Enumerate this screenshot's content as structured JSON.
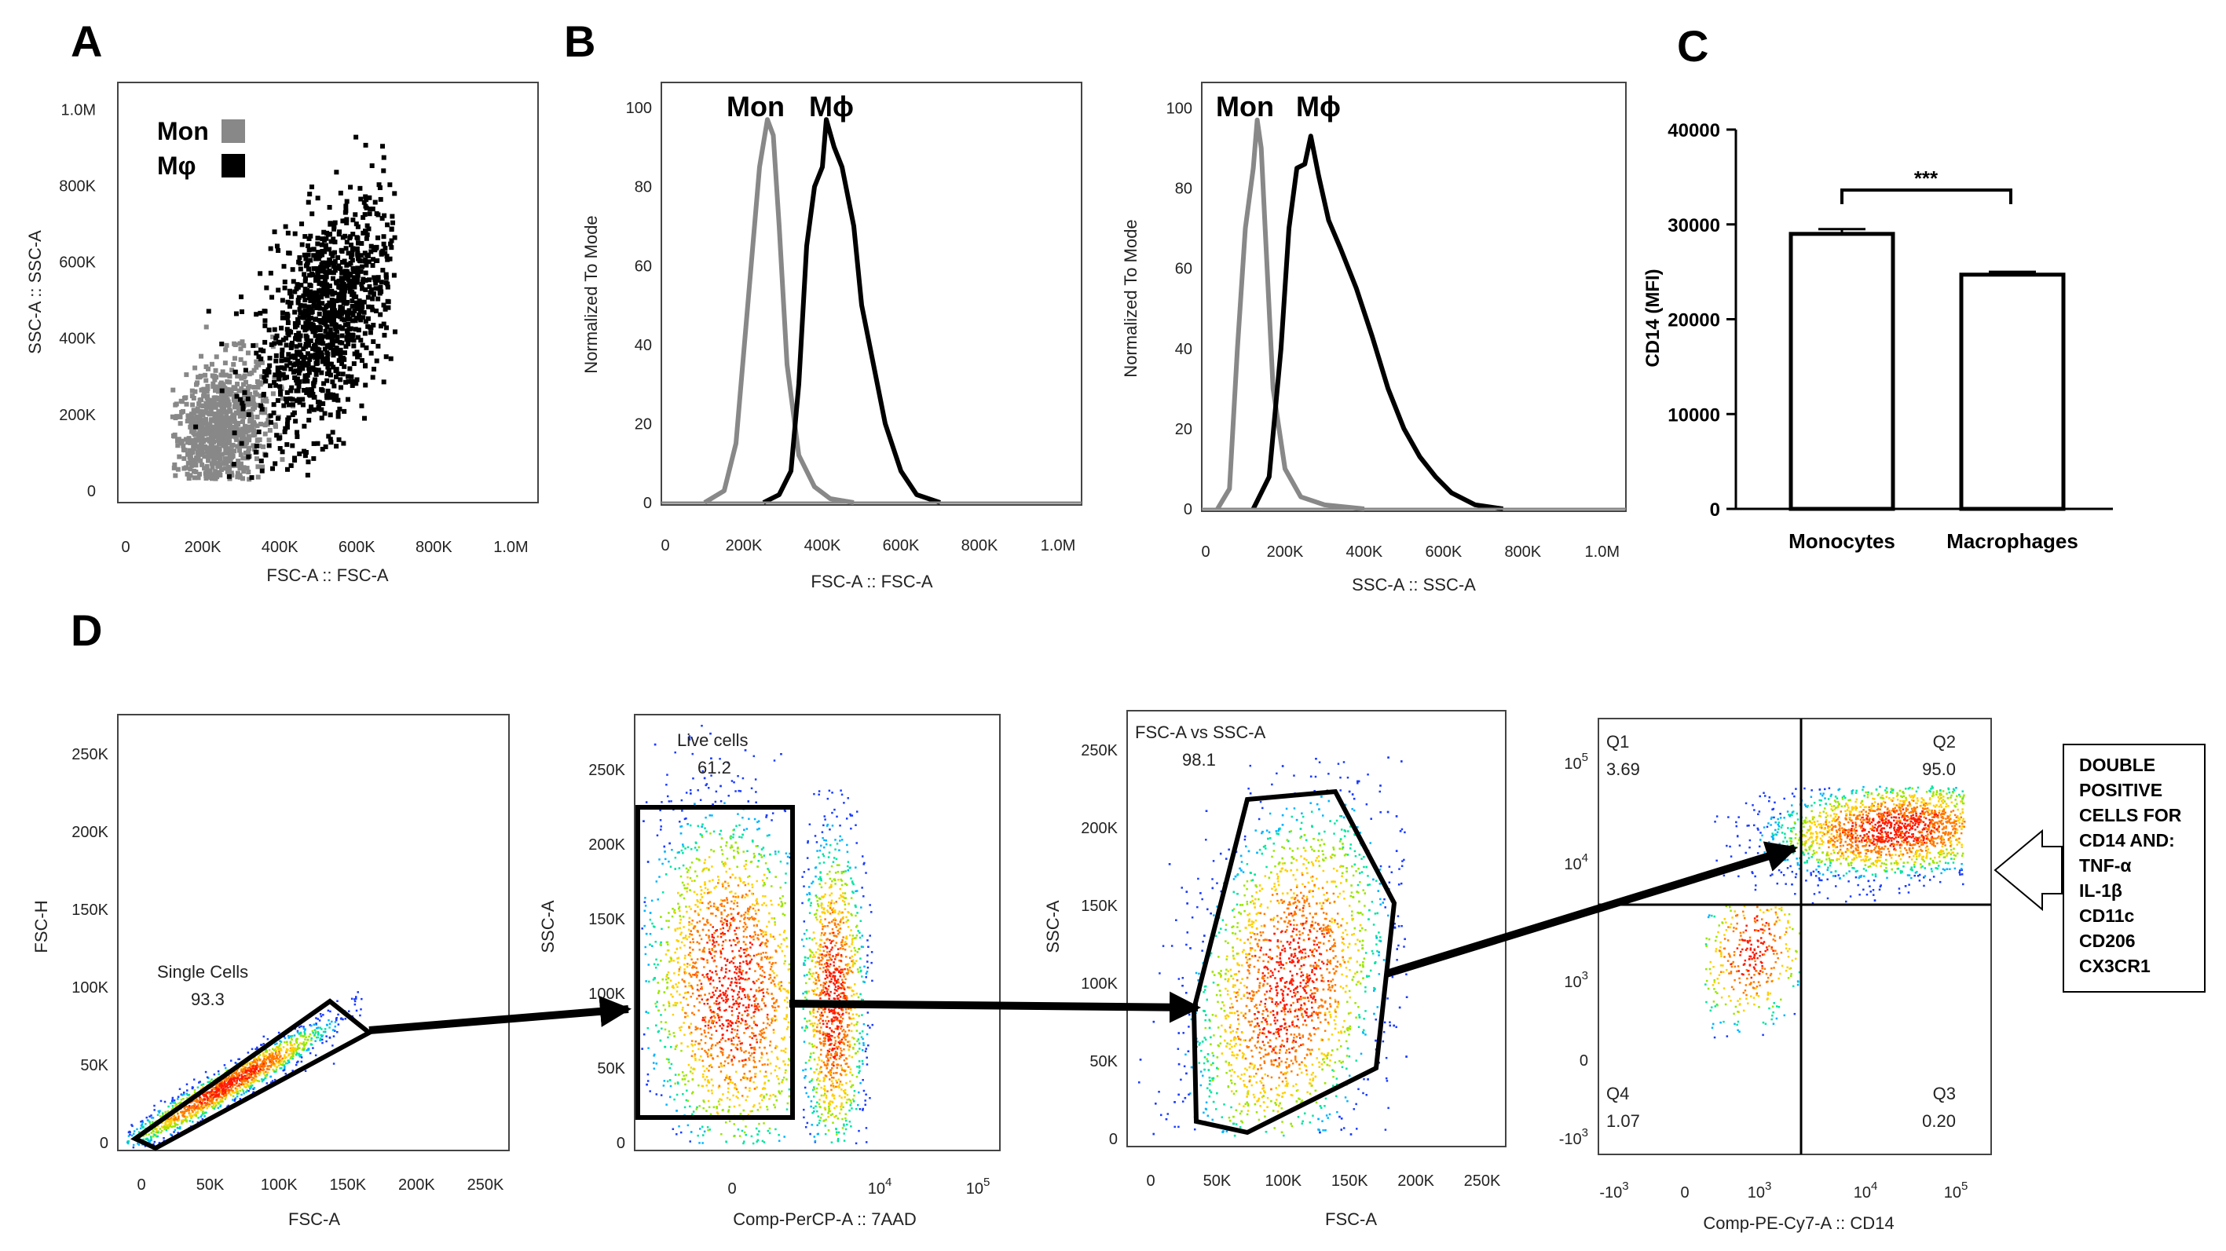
{
  "panels": {
    "A": "A",
    "B": "B",
    "C": "C",
    "D": "D"
  },
  "legend": {
    "mon": "Mon",
    "mac": "Mφ",
    "mac_hist": "Mϕ",
    "mon_color": "#888888",
    "mac_color": "#000000"
  },
  "chart_data": [
    {
      "id": "A",
      "type": "scatter",
      "xlabel": "FSC-A :: FSC-A",
      "ylabel": "SSC-A :: SSC-A",
      "xticks": [
        "0",
        "200K",
        "400K",
        "600K",
        "800K",
        "1.0M"
      ],
      "yticks": [
        "0",
        "200K",
        "400K",
        "600K",
        "800K",
        "1.0M"
      ],
      "xlim": [
        0,
        1050000
      ],
      "ylim": [
        0,
        1050000
      ],
      "series": [
        {
          "name": "Mon",
          "color": "#888888",
          "center": [
            240000,
            150000
          ],
          "spread": [
            70000,
            90000
          ]
        },
        {
          "name": "Mφ",
          "color": "#000000",
          "center": [
            520000,
            450000
          ],
          "spread": [
            90000,
            140000
          ]
        }
      ]
    },
    {
      "id": "B1",
      "type": "line",
      "xlabel": "FSC-A :: FSC-A",
      "ylabel": "Normalized To Mode",
      "xticks": [
        "0",
        "200K",
        "400K",
        "600K",
        "800K",
        "1.0M"
      ],
      "yticks": [
        "0",
        "20",
        "40",
        "60",
        "80",
        "100"
      ],
      "xlim": [
        0,
        1050000
      ],
      "ylim": [
        0,
        105
      ],
      "series": [
        {
          "name": "Mon",
          "color": "#888888",
          "x": [
            100000,
            150000,
            180000,
            210000,
            240000,
            260000,
            275000,
            290000,
            310000,
            340000,
            380000,
            420000,
            480000
          ],
          "y": [
            0,
            3,
            15,
            50,
            85,
            97,
            93,
            70,
            35,
            12,
            4,
            1,
            0
          ]
        },
        {
          "name": "Mϕ",
          "color": "#000000",
          "x": [
            250000,
            290000,
            320000,
            340000,
            360000,
            380000,
            400000,
            410000,
            430000,
            450000,
            480000,
            500000,
            530000,
            560000,
            600000,
            640000,
            700000
          ],
          "y": [
            0,
            2,
            8,
            30,
            65,
            80,
            85,
            97,
            90,
            85,
            70,
            50,
            35,
            20,
            8,
            2,
            0
          ]
        }
      ]
    },
    {
      "id": "B2",
      "type": "line",
      "xlabel": "SSC-A :: SSC-A",
      "ylabel": "Normalized To Mode",
      "xticks": [
        "0",
        "200K",
        "400K",
        "600K",
        "800K",
        "1.0M"
      ],
      "yticks": [
        "0",
        "20",
        "40",
        "60",
        "80",
        "100"
      ],
      "xlim": [
        0,
        1050000
      ],
      "ylim": [
        0,
        105
      ],
      "series": [
        {
          "name": "Mon",
          "color": "#888888",
          "x": [
            30000,
            60000,
            80000,
            100000,
            120000,
            130000,
            140000,
            150000,
            170000,
            200000,
            240000,
            300000,
            400000
          ],
          "y": [
            0,
            5,
            40,
            70,
            85,
            97,
            90,
            70,
            30,
            10,
            3,
            1,
            0
          ]
        },
        {
          "name": "Mϕ",
          "color": "#000000",
          "x": [
            120000,
            160000,
            190000,
            210000,
            230000,
            250000,
            265000,
            285000,
            310000,
            340000,
            380000,
            420000,
            460000,
            500000,
            540000,
            580000,
            620000,
            680000,
            750000
          ],
          "y": [
            0,
            8,
            40,
            70,
            85,
            86,
            93,
            83,
            72,
            65,
            55,
            43,
            30,
            20,
            13,
            8,
            4,
            1,
            0
          ]
        }
      ]
    },
    {
      "id": "C",
      "type": "bar",
      "categories": [
        "Monocytes",
        "Macrophages"
      ],
      "values": [
        29000,
        24700
      ],
      "errors": [
        500,
        300
      ],
      "ylabel": "CD14 (MFI)",
      "yticks": [
        "0",
        "10000",
        "20000",
        "30000",
        "40000"
      ],
      "ylim": [
        0,
        40000
      ],
      "significance": "***"
    }
  ],
  "gating": {
    "plot1": {
      "xlabel": "FSC-A",
      "ylabel": "FSC-H",
      "xticks": [
        "0",
        "50K",
        "100K",
        "150K",
        "200K",
        "250K"
      ],
      "yticks": [
        "0",
        "50K",
        "100K",
        "150K",
        "200K",
        "250K"
      ],
      "gate_name": "Single Cells",
      "gate_value": "93.3"
    },
    "plot2": {
      "xlabel": "Comp-PerCP-A :: 7AAD",
      "ylabel": "SSC-A",
      "xticks": [
        "0",
        "10",
        "10"
      ],
      "xtick_exp": [
        "",
        "4",
        "5"
      ],
      "yticks": [
        "0",
        "50K",
        "100K",
        "150K",
        "200K",
        "250K"
      ],
      "gate_name": "Live cells",
      "gate_value": "61.2"
    },
    "plot3": {
      "xlabel": "FSC-A",
      "ylabel": "SSC-A",
      "xticks": [
        "0",
        "50K",
        "100K",
        "150K",
        "200K",
        "250K"
      ],
      "yticks": [
        "0",
        "50K",
        "100K",
        "150K",
        "200K",
        "250K"
      ],
      "gate_name": "FSC-A vs SSC-A",
      "gate_value": "98.1"
    },
    "plot4": {
      "xlabel": "Comp-PE-Cy7-A :: CD14",
      "xticks": [
        "-10",
        "0",
        "10",
        "10",
        "10"
      ],
      "xtick_exp": [
        "3",
        "",
        "3",
        "4",
        "5"
      ],
      "yticks": [
        "10",
        "10",
        "10",
        "0",
        "-10"
      ],
      "ytick_exp": [
        "5",
        "4",
        "3",
        "",
        "3"
      ],
      "quadrants": {
        "q1": "Q1",
        "q1_value": "3.69",
        "q2": "Q2",
        "q2_value": "95.0",
        "q3": "Q3",
        "q3_value": "0.20",
        "q4": "Q4",
        "q4_value": "1.07"
      }
    },
    "callout": [
      "DOUBLE",
      "POSITIVE",
      "CELLS FOR",
      "CD14 AND:",
      "TNF-α",
      "IL-1β",
      "CD11c",
      "CD206",
      "CX3CR1"
    ]
  }
}
